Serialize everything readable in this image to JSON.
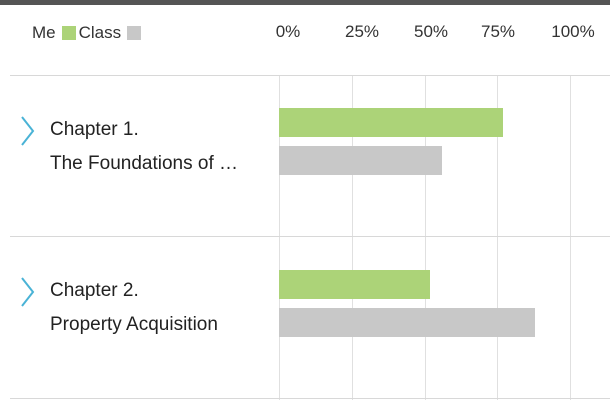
{
  "legend": {
    "me_label": "Me",
    "class_label": "Class"
  },
  "colors": {
    "me": "#acd378",
    "class": "#c8c8c8",
    "chevron": "#4ab3d6"
  },
  "chart_data": {
    "type": "bar",
    "orientation": "horizontal",
    "xlim": [
      0,
      100
    ],
    "ticks": [
      "0%",
      "25%",
      "50%",
      "75%",
      "100%"
    ],
    "tick_values": [
      0,
      25,
      50,
      75,
      100
    ],
    "categories": [
      {
        "number": "Chapter 1.",
        "name": "The Foundations of …"
      },
      {
        "number": "Chapter 2.",
        "name": "Property Acquisition"
      }
    ],
    "series": [
      {
        "name": "Me",
        "values": [
          77,
          52
        ]
      },
      {
        "name": "Class",
        "values": [
          56,
          88
        ]
      }
    ],
    "legend_position": "top-left"
  }
}
